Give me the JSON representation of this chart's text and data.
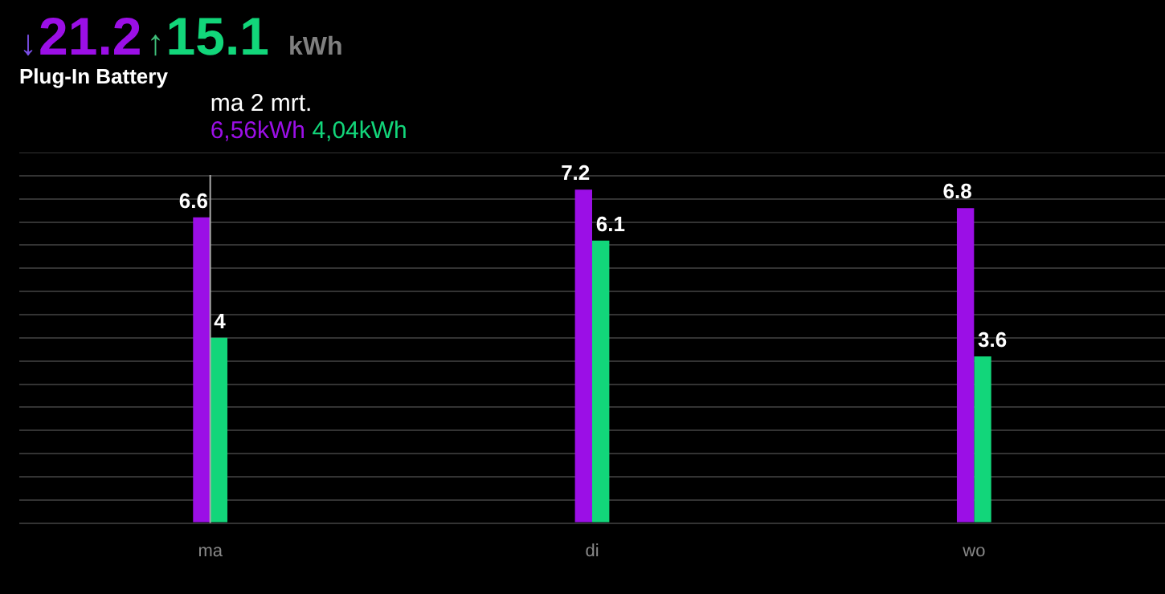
{
  "chart_data": {
    "type": "bar",
    "title": "Plug-In Battery",
    "annotations": [
      "↓",
      "21.2",
      "↑",
      "15.1",
      "kWh",
      "ma 2 mrt.",
      "6,56kWh",
      "4,04kWh"
    ],
    "categories": [
      "ma",
      "di",
      "wo"
    ],
    "series": [
      {
        "color": "#9b0fe6",
        "values": [
          6.6,
          7.2,
          6.8
        ]
      },
      {
        "color": "#12d67a",
        "values": [
          4,
          6.1,
          3.6
        ]
      }
    ],
    "ylim": [
      0,
      8
    ],
    "grid": "y",
    "tick_labels": "x",
    "data_labels": true,
    "legend": false,
    "ref_lines": [
      {
        "axis": "x",
        "value": "ma",
        "color": "#aaaaaa"
      }
    ]
  }
}
